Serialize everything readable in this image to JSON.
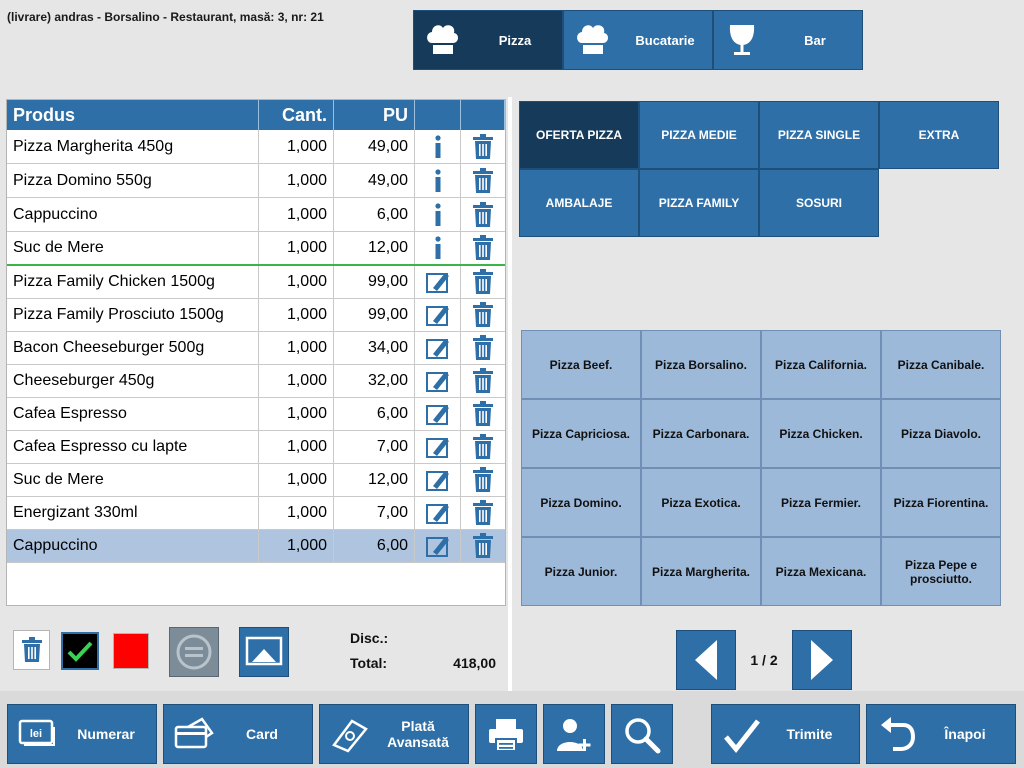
{
  "header": {
    "order_info": "(livrare) andras - Borsalino - Restaurant, masă: 3, nr: 21"
  },
  "stations": [
    {
      "label": "Pizza",
      "icon": "chef-hat-icon"
    },
    {
      "label": "Bucatarie",
      "icon": "chef-hat-icon"
    },
    {
      "label": "Bar",
      "icon": "wine-glass-icon"
    }
  ],
  "order": {
    "columns": {
      "product": "Produs",
      "qty": "Cant.",
      "price": "PU"
    },
    "rows": [
      {
        "name": "Pizza Margherita 450g",
        "qty": "1,000",
        "price": "49,00",
        "action_icon": "info-icon"
      },
      {
        "name": "Pizza Domino 550g",
        "qty": "1,000",
        "price": "49,00",
        "action_icon": "info-icon"
      },
      {
        "name": "Cappuccino",
        "qty": "1,000",
        "price": "6,00",
        "action_icon": "info-icon"
      },
      {
        "name": "Suc de Mere",
        "qty": "1,000",
        "price": "12,00",
        "action_icon": "info-icon"
      },
      {
        "name": "Pizza Family Chicken 1500g",
        "qty": "1,000",
        "price": "99,00",
        "action_icon": "edit-icon"
      },
      {
        "name": "Pizza Family Prosciuto 1500g",
        "qty": "1,000",
        "price": "99,00",
        "action_icon": "edit-icon"
      },
      {
        "name": "Bacon Cheeseburger 500g",
        "qty": "1,000",
        "price": "34,00",
        "action_icon": "edit-icon"
      },
      {
        "name": "Cheeseburger 450g",
        "qty": "1,000",
        "price": "32,00",
        "action_icon": "edit-icon"
      },
      {
        "name": "Cafea Espresso",
        "qty": "1,000",
        "price": "6,00",
        "action_icon": "edit-icon"
      },
      {
        "name": "Cafea Espresso cu lapte",
        "qty": "1,000",
        "price": "7,00",
        "action_icon": "edit-icon"
      },
      {
        "name": "Suc de Mere",
        "qty": "1,000",
        "price": "12,00",
        "action_icon": "edit-icon"
      },
      {
        "name": "Energizant 330ml",
        "qty": "1,000",
        "price": "7,00",
        "action_icon": "edit-icon"
      },
      {
        "name": "Cappuccino",
        "qty": "1,000",
        "price": "6,00",
        "action_icon": "edit-icon"
      }
    ]
  },
  "totals": {
    "disc_label": "Disc.:",
    "total_label": "Total:",
    "total_value": "418,00"
  },
  "categories": [
    "OFERTA PIZZA",
    "PIZZA MEDIE",
    "PIZZA SINGLE",
    "EXTRA",
    "AMBALAJE",
    "PIZZA FAMILY",
    "SOSURI"
  ],
  "products": [
    "Pizza Beef.",
    "Pizza Borsalino.",
    "Pizza California.",
    "Pizza Canibale.",
    "Pizza Capriciosa.",
    "Pizza Carbonara.",
    "Pizza Chicken.",
    "Pizza Diavolo.",
    "Pizza Domino.",
    "Pizza Exotica.",
    "Pizza Fermier.",
    "Pizza Fiorentina.",
    "Pizza Junior.",
    "Pizza Margherita.",
    "Pizza Mexicana.",
    "Pizza Pepe e prosciutto."
  ],
  "pagination": {
    "label": "1 / 2"
  },
  "bottom": {
    "cash": "Numerar",
    "card": "Card",
    "advance": "Plată Avansată",
    "send": "Trimite",
    "back": "Înapoi"
  },
  "colors": {
    "primary": "#2e6fa7",
    "active": "#163a5a",
    "product_tile": "#9db9d9",
    "selected_row": "#aec4df",
    "separator": "#39b54a",
    "delete_red": "#ff0000"
  }
}
